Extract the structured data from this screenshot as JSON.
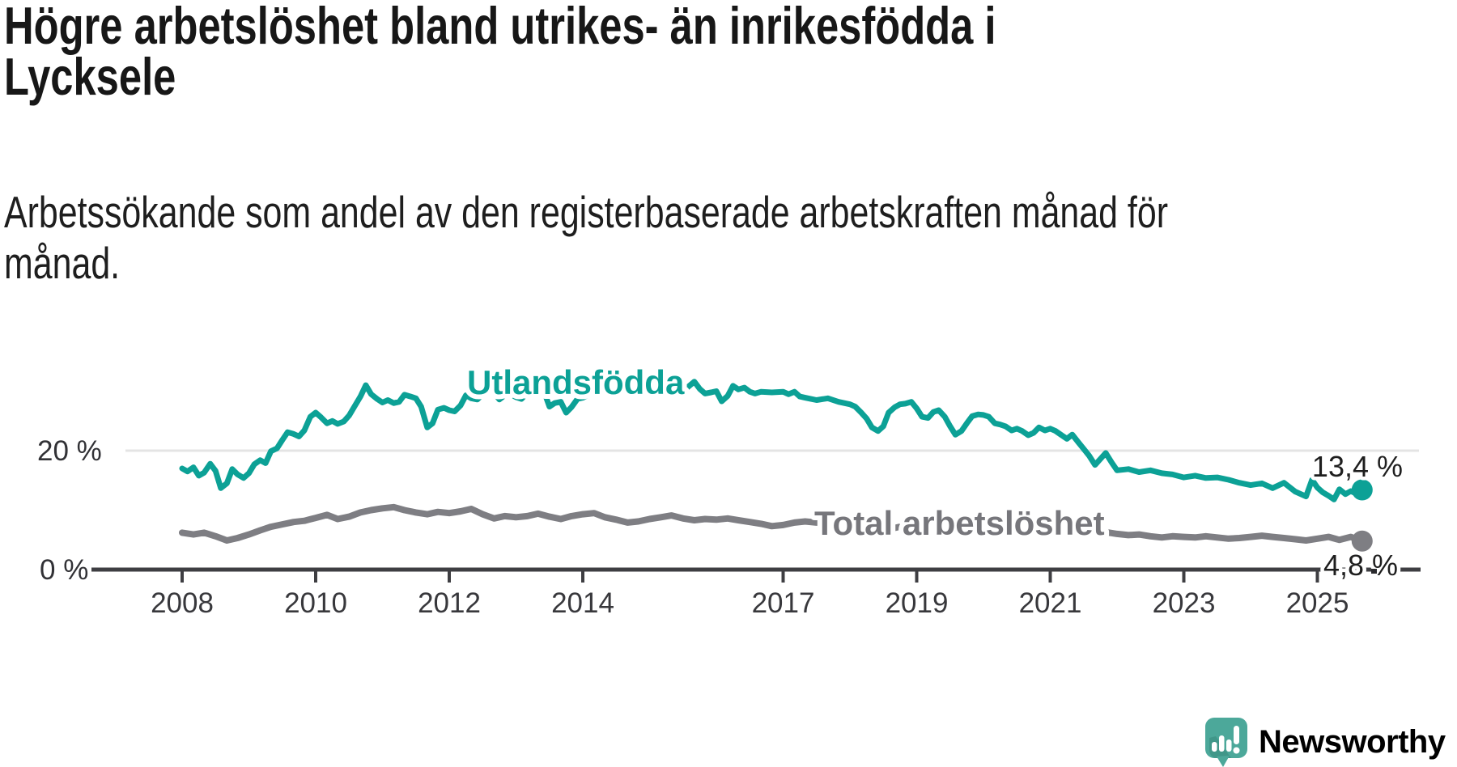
{
  "header": {
    "title_lines": [
      "Högre arbetslöshet bland utrikes- än inrikesfödda i",
      "Lycksele"
    ],
    "subtitle_lines": [
      "Arbetssökande som andel av den registerbaserade arbetskraften månad för",
      "månad."
    ]
  },
  "chart_data": {
    "type": "line",
    "title": "Högre arbetslöshet bland utrikes- än inrikesfödda i Lycksele",
    "subtitle": "Arbetssökande som andel av den registerbaserade arbetskraften månad för månad.",
    "xlabel": "",
    "ylabel": "",
    "x_range": [
      2008,
      2025.67
    ],
    "ylim": [
      0,
      33
    ],
    "grid": "single horizontal gridline at 20%",
    "legend_position": "inline labels on lines",
    "x_axis": {
      "ticks": [
        2008,
        2010,
        2012,
        2014,
        2017,
        2019,
        2021,
        2023,
        2025
      ]
    },
    "y_axis": {
      "ticks": [
        {
          "value": 0,
          "label": "0 %"
        },
        {
          "value": 20,
          "label": "20 %"
        }
      ]
    },
    "series": [
      {
        "name": "Utlandsfödda",
        "color": "#0CA196",
        "end_label": "13,4 %",
        "end_value": 13.4,
        "points": [
          [
            2008.0,
            17.0
          ],
          [
            2008.08,
            16.5
          ],
          [
            2008.17,
            17.2
          ],
          [
            2008.25,
            15.8
          ],
          [
            2008.33,
            16.3
          ],
          [
            2008.42,
            17.8
          ],
          [
            2008.5,
            16.6
          ],
          [
            2008.58,
            13.7
          ],
          [
            2008.67,
            14.5
          ],
          [
            2008.75,
            16.9
          ],
          [
            2008.83,
            16.0
          ],
          [
            2008.92,
            15.4
          ],
          [
            2009.0,
            16.2
          ],
          [
            2009.08,
            17.7
          ],
          [
            2009.17,
            18.4
          ],
          [
            2009.25,
            17.9
          ],
          [
            2009.33,
            19.9
          ],
          [
            2009.42,
            20.4
          ],
          [
            2009.5,
            21.8
          ],
          [
            2009.58,
            23.1
          ],
          [
            2009.67,
            22.8
          ],
          [
            2009.75,
            22.4
          ],
          [
            2009.83,
            23.4
          ],
          [
            2009.92,
            25.7
          ],
          [
            2010.0,
            26.4
          ],
          [
            2010.08,
            25.6
          ],
          [
            2010.17,
            24.6
          ],
          [
            2010.25,
            25.0
          ],
          [
            2010.33,
            24.5
          ],
          [
            2010.42,
            24.9
          ],
          [
            2010.5,
            25.9
          ],
          [
            2010.58,
            27.4
          ],
          [
            2010.67,
            29.1
          ],
          [
            2010.75,
            31.0
          ],
          [
            2010.83,
            29.5
          ],
          [
            2010.92,
            28.7
          ],
          [
            2011.0,
            28.1
          ],
          [
            2011.08,
            28.5
          ],
          [
            2011.17,
            28.0
          ],
          [
            2011.25,
            28.2
          ],
          [
            2011.33,
            29.4
          ],
          [
            2011.42,
            29.1
          ],
          [
            2011.5,
            28.8
          ],
          [
            2011.58,
            27.4
          ],
          [
            2011.67,
            23.9
          ],
          [
            2011.75,
            24.6
          ],
          [
            2011.83,
            26.9
          ],
          [
            2011.92,
            27.2
          ],
          [
            2012.0,
            26.8
          ],
          [
            2012.08,
            26.6
          ],
          [
            2012.17,
            27.6
          ],
          [
            2012.25,
            29.3
          ],
          [
            2012.33,
            28.8
          ],
          [
            2012.42,
            28.6
          ],
          [
            2012.5,
            29.5
          ],
          [
            2012.58,
            30.4
          ],
          [
            2012.67,
            29.8
          ],
          [
            2012.75,
            28.6
          ],
          [
            2012.83,
            29.3
          ],
          [
            2012.92,
            29.5
          ],
          [
            2013.0,
            29.0
          ],
          [
            2013.08,
            28.7
          ],
          [
            2013.17,
            29.7
          ],
          [
            2013.25,
            30.6
          ],
          [
            2013.33,
            31.3
          ],
          [
            2013.42,
            29.9
          ],
          [
            2013.5,
            27.4
          ],
          [
            2013.58,
            28.0
          ],
          [
            2013.67,
            28.2
          ],
          [
            2013.75,
            26.4
          ],
          [
            2013.83,
            27.3
          ],
          [
            2013.92,
            28.7
          ],
          [
            2014.0,
            28.9
          ],
          [
            2014.17,
            29.9
          ],
          [
            2014.33,
            30.6
          ],
          [
            2014.5,
            29.6
          ],
          [
            2014.67,
            30.4
          ],
          [
            2014.83,
            30.6
          ],
          [
            2015.0,
            30.1
          ],
          [
            2015.17,
            29.9
          ],
          [
            2015.33,
            30.7
          ],
          [
            2015.5,
            30.0
          ],
          [
            2015.67,
            31.6
          ],
          [
            2015.75,
            30.4
          ],
          [
            2015.83,
            29.6
          ],
          [
            2015.92,
            29.8
          ],
          [
            2016.0,
            30.0
          ],
          [
            2016.08,
            28.3
          ],
          [
            2016.17,
            29.2
          ],
          [
            2016.25,
            30.9
          ],
          [
            2016.33,
            30.3
          ],
          [
            2016.42,
            30.6
          ],
          [
            2016.5,
            29.9
          ],
          [
            2016.58,
            29.6
          ],
          [
            2016.67,
            29.9
          ],
          [
            2016.83,
            29.8
          ],
          [
            2017.0,
            29.9
          ],
          [
            2017.08,
            29.5
          ],
          [
            2017.17,
            29.9
          ],
          [
            2017.25,
            29.1
          ],
          [
            2017.33,
            28.9
          ],
          [
            2017.5,
            28.5
          ],
          [
            2017.67,
            28.8
          ],
          [
            2017.83,
            28.2
          ],
          [
            2018.0,
            27.8
          ],
          [
            2018.08,
            27.4
          ],
          [
            2018.17,
            26.4
          ],
          [
            2018.25,
            25.4
          ],
          [
            2018.33,
            23.9
          ],
          [
            2018.42,
            23.3
          ],
          [
            2018.5,
            24.1
          ],
          [
            2018.58,
            26.4
          ],
          [
            2018.67,
            27.3
          ],
          [
            2018.75,
            27.8
          ],
          [
            2018.83,
            27.9
          ],
          [
            2018.92,
            28.2
          ],
          [
            2019.0,
            27.1
          ],
          [
            2019.08,
            25.7
          ],
          [
            2019.17,
            25.5
          ],
          [
            2019.25,
            26.5
          ],
          [
            2019.33,
            26.8
          ],
          [
            2019.42,
            25.7
          ],
          [
            2019.5,
            24.1
          ],
          [
            2019.58,
            22.7
          ],
          [
            2019.67,
            23.3
          ],
          [
            2019.75,
            24.6
          ],
          [
            2019.83,
            25.8
          ],
          [
            2019.92,
            26.1
          ],
          [
            2020.0,
            26.0
          ],
          [
            2020.08,
            25.7
          ],
          [
            2020.17,
            24.6
          ],
          [
            2020.25,
            24.4
          ],
          [
            2020.33,
            24.1
          ],
          [
            2020.42,
            23.4
          ],
          [
            2020.5,
            23.7
          ],
          [
            2020.58,
            23.3
          ],
          [
            2020.67,
            22.6
          ],
          [
            2020.75,
            23.0
          ],
          [
            2020.83,
            23.9
          ],
          [
            2020.92,
            23.4
          ],
          [
            2021.0,
            23.7
          ],
          [
            2021.08,
            23.3
          ],
          [
            2021.17,
            22.6
          ],
          [
            2021.25,
            22.0
          ],
          [
            2021.33,
            22.7
          ],
          [
            2021.42,
            21.4
          ],
          [
            2021.5,
            20.3
          ],
          [
            2021.58,
            19.2
          ],
          [
            2021.67,
            17.6
          ],
          [
            2021.75,
            18.6
          ],
          [
            2021.83,
            19.6
          ],
          [
            2021.92,
            18.0
          ],
          [
            2022.0,
            16.7
          ],
          [
            2022.17,
            16.9
          ],
          [
            2022.33,
            16.4
          ],
          [
            2022.5,
            16.7
          ],
          [
            2022.67,
            16.2
          ],
          [
            2022.83,
            16.0
          ],
          [
            2023.0,
            15.5
          ],
          [
            2023.17,
            15.8
          ],
          [
            2023.33,
            15.4
          ],
          [
            2023.5,
            15.5
          ],
          [
            2023.67,
            15.1
          ],
          [
            2023.83,
            14.6
          ],
          [
            2024.0,
            14.2
          ],
          [
            2024.17,
            14.5
          ],
          [
            2024.33,
            13.7
          ],
          [
            2024.5,
            14.6
          ],
          [
            2024.67,
            13.1
          ],
          [
            2024.83,
            12.3
          ],
          [
            2024.92,
            15.1
          ],
          [
            2025.0,
            13.8
          ],
          [
            2025.08,
            13.0
          ],
          [
            2025.17,
            12.4
          ],
          [
            2025.25,
            11.8
          ],
          [
            2025.33,
            13.5
          ],
          [
            2025.42,
            12.7
          ],
          [
            2025.5,
            13.2
          ],
          [
            2025.58,
            12.8
          ],
          [
            2025.67,
            13.4
          ]
        ]
      },
      {
        "name": "Total arbetslöshet",
        "color": "#7E7E83",
        "end_label": "4,8 %",
        "end_value": 4.8,
        "points": [
          [
            2008.0,
            6.2
          ],
          [
            2008.17,
            5.9
          ],
          [
            2008.33,
            6.2
          ],
          [
            2008.5,
            5.6
          ],
          [
            2008.67,
            4.9
          ],
          [
            2008.83,
            5.3
          ],
          [
            2009.0,
            5.9
          ],
          [
            2009.17,
            6.6
          ],
          [
            2009.33,
            7.2
          ],
          [
            2009.5,
            7.6
          ],
          [
            2009.67,
            8.0
          ],
          [
            2009.83,
            8.2
          ],
          [
            2010.0,
            8.7
          ],
          [
            2010.17,
            9.2
          ],
          [
            2010.33,
            8.5
          ],
          [
            2010.5,
            8.9
          ],
          [
            2010.67,
            9.6
          ],
          [
            2010.83,
            10.0
          ],
          [
            2011.0,
            10.3
          ],
          [
            2011.17,
            10.5
          ],
          [
            2011.33,
            10.0
          ],
          [
            2011.5,
            9.6
          ],
          [
            2011.67,
            9.3
          ],
          [
            2011.83,
            9.7
          ],
          [
            2012.0,
            9.5
          ],
          [
            2012.17,
            9.8
          ],
          [
            2012.33,
            10.2
          ],
          [
            2012.5,
            9.3
          ],
          [
            2012.67,
            8.6
          ],
          [
            2012.83,
            9.0
          ],
          [
            2013.0,
            8.8
          ],
          [
            2013.17,
            9.0
          ],
          [
            2013.33,
            9.4
          ],
          [
            2013.5,
            8.9
          ],
          [
            2013.67,
            8.5
          ],
          [
            2013.83,
            9.0
          ],
          [
            2014.0,
            9.3
          ],
          [
            2014.17,
            9.5
          ],
          [
            2014.33,
            8.8
          ],
          [
            2014.5,
            8.4
          ],
          [
            2014.67,
            7.9
          ],
          [
            2014.83,
            8.1
          ],
          [
            2015.0,
            8.5
          ],
          [
            2015.17,
            8.8
          ],
          [
            2015.33,
            9.1
          ],
          [
            2015.5,
            8.6
          ],
          [
            2015.67,
            8.3
          ],
          [
            2015.83,
            8.5
          ],
          [
            2016.0,
            8.4
          ],
          [
            2016.17,
            8.6
          ],
          [
            2016.33,
            8.3
          ],
          [
            2016.5,
            8.0
          ],
          [
            2016.67,
            7.7
          ],
          [
            2016.83,
            7.3
          ],
          [
            2017.0,
            7.5
          ],
          [
            2017.17,
            7.9
          ],
          [
            2017.33,
            8.1
          ],
          [
            2017.5,
            7.9
          ],
          [
            2017.67,
            8.2
          ],
          [
            2017.83,
            8.0
          ],
          [
            2018.0,
            7.7
          ],
          [
            2018.17,
            7.3
          ],
          [
            2018.33,
            6.9
          ],
          [
            2018.5,
            6.6
          ],
          [
            2018.67,
            7.0
          ],
          [
            2018.83,
            7.4
          ],
          [
            2019.0,
            7.6
          ],
          [
            2019.17,
            7.8
          ],
          [
            2019.33,
            7.6
          ],
          [
            2019.5,
            7.3
          ],
          [
            2019.67,
            6.9
          ],
          [
            2019.83,
            7.1
          ],
          [
            2020.0,
            7.4
          ],
          [
            2020.17,
            7.8
          ],
          [
            2020.33,
            8.0
          ],
          [
            2020.5,
            7.8
          ],
          [
            2020.67,
            7.5
          ],
          [
            2020.83,
            7.3
          ],
          [
            2021.0,
            7.6
          ],
          [
            2021.17,
            7.8
          ],
          [
            2021.33,
            7.5
          ],
          [
            2021.5,
            7.1
          ],
          [
            2021.67,
            6.7
          ],
          [
            2021.83,
            6.3
          ],
          [
            2022.0,
            6.0
          ],
          [
            2022.17,
            5.8
          ],
          [
            2022.33,
            5.9
          ],
          [
            2022.5,
            5.6
          ],
          [
            2022.67,
            5.4
          ],
          [
            2022.83,
            5.6
          ],
          [
            2023.0,
            5.5
          ],
          [
            2023.17,
            5.4
          ],
          [
            2023.33,
            5.6
          ],
          [
            2023.5,
            5.4
          ],
          [
            2023.67,
            5.2
          ],
          [
            2023.83,
            5.3
          ],
          [
            2024.0,
            5.5
          ],
          [
            2024.17,
            5.7
          ],
          [
            2024.33,
            5.5
          ],
          [
            2024.5,
            5.3
          ],
          [
            2024.67,
            5.1
          ],
          [
            2024.83,
            4.9
          ],
          [
            2025.0,
            5.2
          ],
          [
            2025.17,
            5.5
          ],
          [
            2025.33,
            5.0
          ],
          [
            2025.5,
            5.5
          ],
          [
            2025.67,
            4.8
          ]
        ]
      }
    ]
  },
  "footer": {
    "brand": "Newsworthy",
    "brand_color": "#47A094",
    "logo_color": "#4CA89A"
  }
}
